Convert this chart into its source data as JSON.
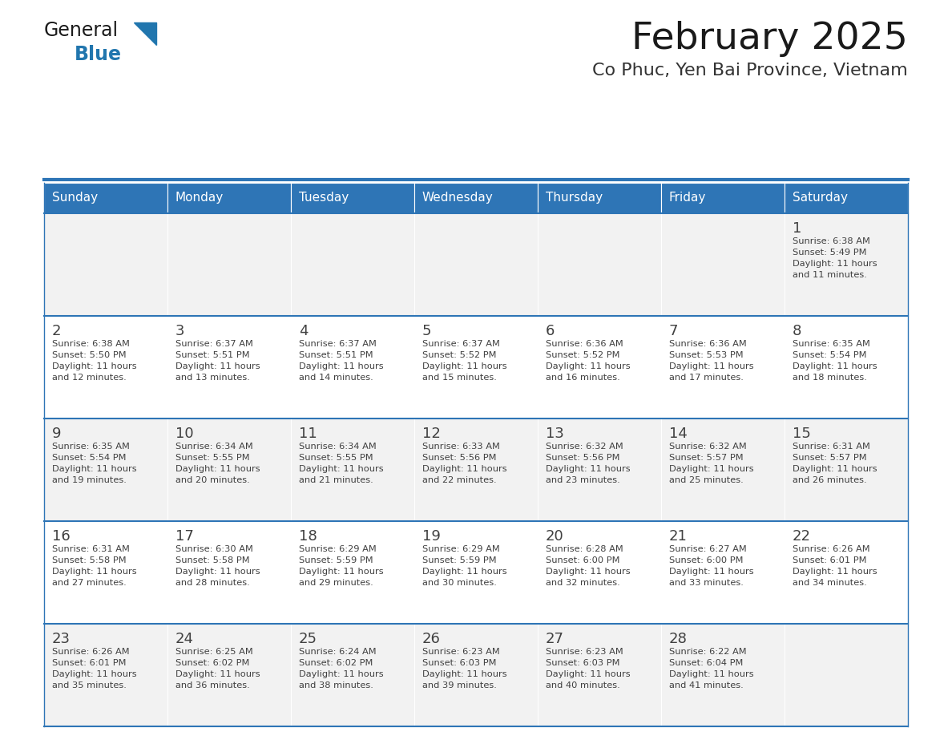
{
  "title": "February 2025",
  "subtitle": "Co Phuc, Yen Bai Province, Vietnam",
  "header_bg": "#2E75B6",
  "header_text_color": "#FFFFFF",
  "day_names": [
    "Sunday",
    "Monday",
    "Tuesday",
    "Wednesday",
    "Thursday",
    "Friday",
    "Saturday"
  ],
  "row_bg_even": "#F2F2F2",
  "row_bg_odd": "#FFFFFF",
  "cell_border_color": "#2E75B6",
  "text_color": "#404040",
  "day_num_color": "#404040",
  "title_color": "#1a1a1a",
  "subtitle_color": "#333333",
  "logo_general_color": "#1a1a1a",
  "logo_blue_color": "#2176AE",
  "calendar": [
    [
      {
        "day": null,
        "info": ""
      },
      {
        "day": null,
        "info": ""
      },
      {
        "day": null,
        "info": ""
      },
      {
        "day": null,
        "info": ""
      },
      {
        "day": null,
        "info": ""
      },
      {
        "day": null,
        "info": ""
      },
      {
        "day": 1,
        "info": "Sunrise: 6:38 AM\nSunset: 5:49 PM\nDaylight: 11 hours\nand 11 minutes."
      }
    ],
    [
      {
        "day": 2,
        "info": "Sunrise: 6:38 AM\nSunset: 5:50 PM\nDaylight: 11 hours\nand 12 minutes."
      },
      {
        "day": 3,
        "info": "Sunrise: 6:37 AM\nSunset: 5:51 PM\nDaylight: 11 hours\nand 13 minutes."
      },
      {
        "day": 4,
        "info": "Sunrise: 6:37 AM\nSunset: 5:51 PM\nDaylight: 11 hours\nand 14 minutes."
      },
      {
        "day": 5,
        "info": "Sunrise: 6:37 AM\nSunset: 5:52 PM\nDaylight: 11 hours\nand 15 minutes."
      },
      {
        "day": 6,
        "info": "Sunrise: 6:36 AM\nSunset: 5:52 PM\nDaylight: 11 hours\nand 16 minutes."
      },
      {
        "day": 7,
        "info": "Sunrise: 6:36 AM\nSunset: 5:53 PM\nDaylight: 11 hours\nand 17 minutes."
      },
      {
        "day": 8,
        "info": "Sunrise: 6:35 AM\nSunset: 5:54 PM\nDaylight: 11 hours\nand 18 minutes."
      }
    ],
    [
      {
        "day": 9,
        "info": "Sunrise: 6:35 AM\nSunset: 5:54 PM\nDaylight: 11 hours\nand 19 minutes."
      },
      {
        "day": 10,
        "info": "Sunrise: 6:34 AM\nSunset: 5:55 PM\nDaylight: 11 hours\nand 20 minutes."
      },
      {
        "day": 11,
        "info": "Sunrise: 6:34 AM\nSunset: 5:55 PM\nDaylight: 11 hours\nand 21 minutes."
      },
      {
        "day": 12,
        "info": "Sunrise: 6:33 AM\nSunset: 5:56 PM\nDaylight: 11 hours\nand 22 minutes."
      },
      {
        "day": 13,
        "info": "Sunrise: 6:32 AM\nSunset: 5:56 PM\nDaylight: 11 hours\nand 23 minutes."
      },
      {
        "day": 14,
        "info": "Sunrise: 6:32 AM\nSunset: 5:57 PM\nDaylight: 11 hours\nand 25 minutes."
      },
      {
        "day": 15,
        "info": "Sunrise: 6:31 AM\nSunset: 5:57 PM\nDaylight: 11 hours\nand 26 minutes."
      }
    ],
    [
      {
        "day": 16,
        "info": "Sunrise: 6:31 AM\nSunset: 5:58 PM\nDaylight: 11 hours\nand 27 minutes."
      },
      {
        "day": 17,
        "info": "Sunrise: 6:30 AM\nSunset: 5:58 PM\nDaylight: 11 hours\nand 28 minutes."
      },
      {
        "day": 18,
        "info": "Sunrise: 6:29 AM\nSunset: 5:59 PM\nDaylight: 11 hours\nand 29 minutes."
      },
      {
        "day": 19,
        "info": "Sunrise: 6:29 AM\nSunset: 5:59 PM\nDaylight: 11 hours\nand 30 minutes."
      },
      {
        "day": 20,
        "info": "Sunrise: 6:28 AM\nSunset: 6:00 PM\nDaylight: 11 hours\nand 32 minutes."
      },
      {
        "day": 21,
        "info": "Sunrise: 6:27 AM\nSunset: 6:00 PM\nDaylight: 11 hours\nand 33 minutes."
      },
      {
        "day": 22,
        "info": "Sunrise: 6:26 AM\nSunset: 6:01 PM\nDaylight: 11 hours\nand 34 minutes."
      }
    ],
    [
      {
        "day": 23,
        "info": "Sunrise: 6:26 AM\nSunset: 6:01 PM\nDaylight: 11 hours\nand 35 minutes."
      },
      {
        "day": 24,
        "info": "Sunrise: 6:25 AM\nSunset: 6:02 PM\nDaylight: 11 hours\nand 36 minutes."
      },
      {
        "day": 25,
        "info": "Sunrise: 6:24 AM\nSunset: 6:02 PM\nDaylight: 11 hours\nand 38 minutes."
      },
      {
        "day": 26,
        "info": "Sunrise: 6:23 AM\nSunset: 6:03 PM\nDaylight: 11 hours\nand 39 minutes."
      },
      {
        "day": 27,
        "info": "Sunrise: 6:23 AM\nSunset: 6:03 PM\nDaylight: 11 hours\nand 40 minutes."
      },
      {
        "day": 28,
        "info": "Sunrise: 6:22 AM\nSunset: 6:04 PM\nDaylight: 11 hours\nand 41 minutes."
      },
      {
        "day": null,
        "info": ""
      }
    ]
  ]
}
